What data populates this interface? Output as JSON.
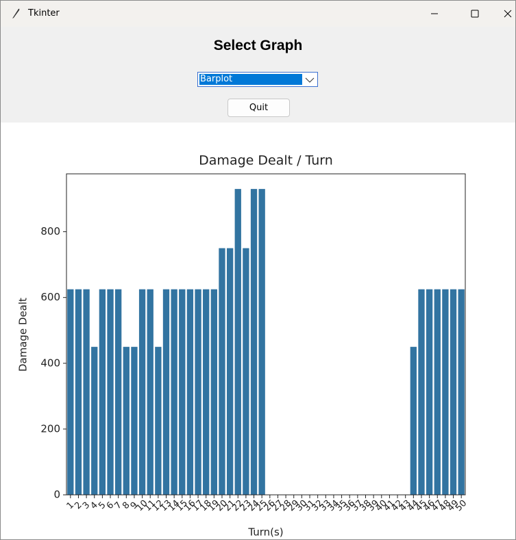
{
  "window": {
    "title": "Tkinter"
  },
  "header": {
    "title": "Select Graph"
  },
  "dropdown": {
    "selected": "Barplot"
  },
  "button": {
    "label": "Quit"
  },
  "chart_data": {
    "type": "bar",
    "title": "Damage Dealt / Turn",
    "x_label": "Turn(s)",
    "y_label": "Damage Dealt",
    "color": "#3274a1",
    "categories": [
      "1",
      "2",
      "3",
      "4",
      "5",
      "6",
      "7",
      "8",
      "9",
      "10",
      "11",
      "12",
      "13",
      "14",
      "15",
      "16",
      "17",
      "18",
      "19",
      "20",
      "21",
      "22",
      "23",
      "24",
      "25",
      "26",
      "27",
      "28",
      "29",
      "30",
      "31",
      "32",
      "33",
      "34",
      "35",
      "36",
      "37",
      "38",
      "39",
      "40",
      "41",
      "42",
      "43",
      "44",
      "45",
      "46",
      "47",
      "48",
      "49",
      "50"
    ],
    "values": [
      625,
      625,
      625,
      450,
      625,
      625,
      625,
      450,
      450,
      625,
      625,
      450,
      625,
      625,
      625,
      625,
      625,
      625,
      625,
      750,
      750,
      930,
      750,
      930,
      930,
      0,
      0,
      0,
      0,
      0,
      0,
      0,
      0,
      0,
      0,
      0,
      0,
      0,
      0,
      0,
      0,
      0,
      0,
      450,
      625,
      625,
      625,
      625,
      625,
      625
    ],
    "ylim": [
      0,
      976
    ],
    "yticks": [
      0,
      200,
      400,
      600,
      800
    ]
  }
}
